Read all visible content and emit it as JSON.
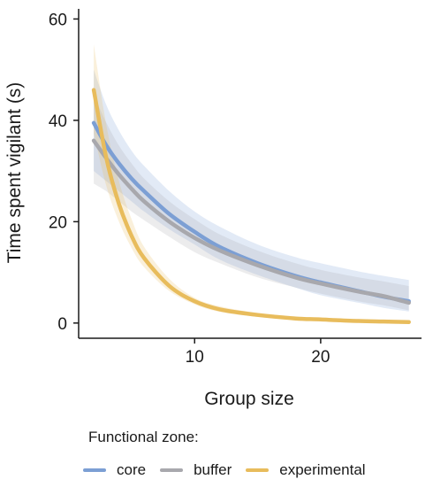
{
  "chart_data": {
    "type": "line",
    "xlabel": "Group size",
    "ylabel": "Time spent vigilant (s)",
    "xlim": [
      0.8,
      28
    ],
    "ylim": [
      -3,
      62
    ],
    "xticks": [
      10,
      20
    ],
    "yticks": [
      0,
      20,
      40,
      60
    ],
    "x": [
      2,
      3,
      4,
      5,
      6,
      8,
      10,
      12,
      15,
      18,
      20,
      23,
      25,
      27
    ],
    "series": [
      {
        "name": "core",
        "color": "#7c9fd4",
        "values": [
          39.5,
          35.0,
          31.5,
          28.5,
          26.0,
          21.5,
          18.0,
          15.0,
          11.8,
          9.3,
          8.0,
          6.3,
          5.2,
          4.3
        ],
        "ci_lower": [
          30.0,
          28.0,
          26.0,
          24.0,
          22.0,
          18.5,
          15.5,
          12.5,
          9.5,
          7.0,
          5.5,
          4.0,
          3.0,
          2.3
        ],
        "ci_upper": [
          50.0,
          43.0,
          38.0,
          34.0,
          31.0,
          26.0,
          22.0,
          19.0,
          15.5,
          13.0,
          11.8,
          10.2,
          9.3,
          8.5
        ]
      },
      {
        "name": "buffer",
        "color": "#a8a8ad",
        "values": [
          36.0,
          32.5,
          29.3,
          26.5,
          24.0,
          20.0,
          16.8,
          14.3,
          11.4,
          9.0,
          7.8,
          6.2,
          5.3,
          4.0
        ],
        "ci_lower": [
          27.5,
          26.0,
          24.0,
          22.0,
          20.3,
          17.0,
          14.0,
          11.8,
          9.0,
          7.0,
          5.8,
          4.3,
          3.5,
          2.5
        ],
        "ci_upper": [
          45.0,
          39.5,
          35.0,
          31.5,
          28.5,
          24.0,
          20.5,
          17.5,
          14.3,
          11.8,
          10.5,
          9.0,
          8.2,
          7.3
        ]
      },
      {
        "name": "experimental",
        "color": "#e8bc5c",
        "values": [
          46.0,
          32.5,
          23.5,
          17.2,
          12.8,
          7.3,
          4.3,
          2.7,
          1.6,
          0.9,
          0.7,
          0.4,
          0.3,
          0.2
        ],
        "ci_lower": [
          37.5,
          27.0,
          20.0,
          14.8,
          11.0,
          6.3,
          3.7,
          2.2,
          1.2,
          0.6,
          0.4,
          0.2,
          0.1,
          0.0
        ],
        "ci_upper": [
          55.0,
          39.0,
          28.0,
          20.5,
          15.0,
          8.7,
          5.0,
          3.3,
          2.0,
          1.3,
          1.0,
          0.7,
          0.5,
          0.4
        ]
      }
    ],
    "legend_title": "Functional zone:",
    "legend_position": "bottom",
    "grid": false
  }
}
